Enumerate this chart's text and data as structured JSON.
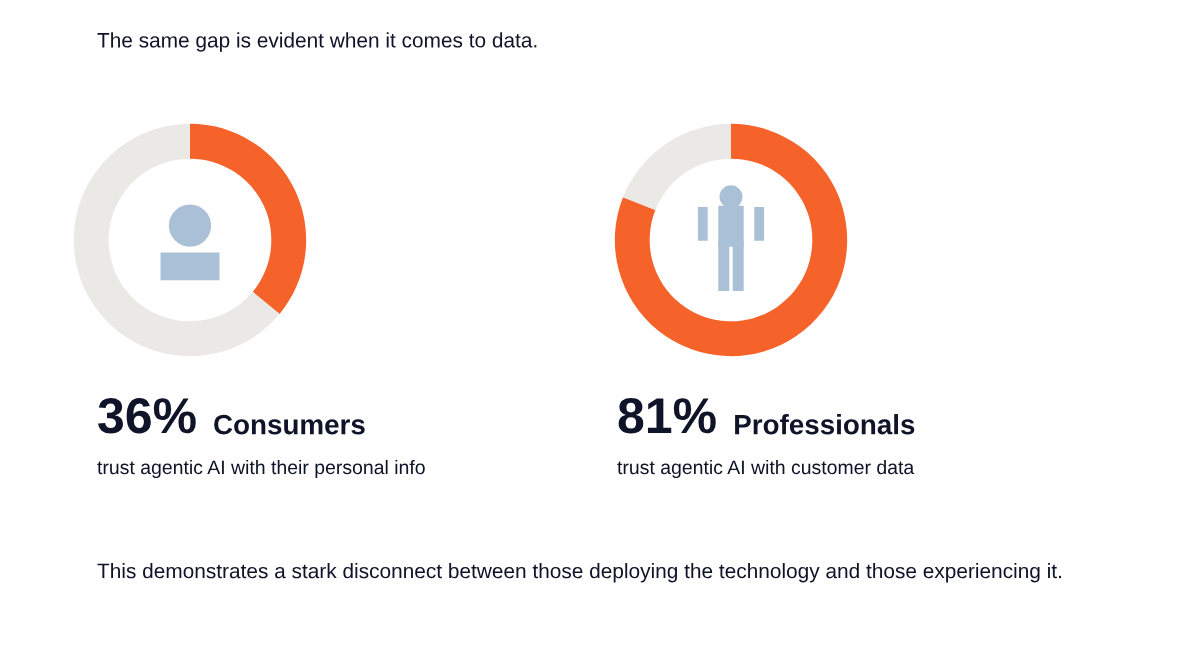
{
  "chart_data": [
    {
      "type": "donut",
      "title": "Consumers",
      "categories": [
        null,
        null
      ],
      "values": [
        36,
        64
      ],
      "colors": [
        "#f5622a",
        "#ebe9e5"
      ],
      "subtitle": "trust agentic AI with their personal info",
      "annotations": [
        "36%",
        "The same gap is evident when it comes to data."
      ]
    },
    {
      "type": "donut",
      "title": "Professionals",
      "categories": [
        null,
        null
      ],
      "values": [
        81,
        19
      ],
      "colors": [
        "#f5622a",
        "#ebe9e5"
      ],
      "subtitle": "trust agentic AI with customer data",
      "annotations": [
        "81%",
        "This demonstrates a stark disconnect between those deploying the technology and those experiencing it."
      ]
    }
  ]
}
